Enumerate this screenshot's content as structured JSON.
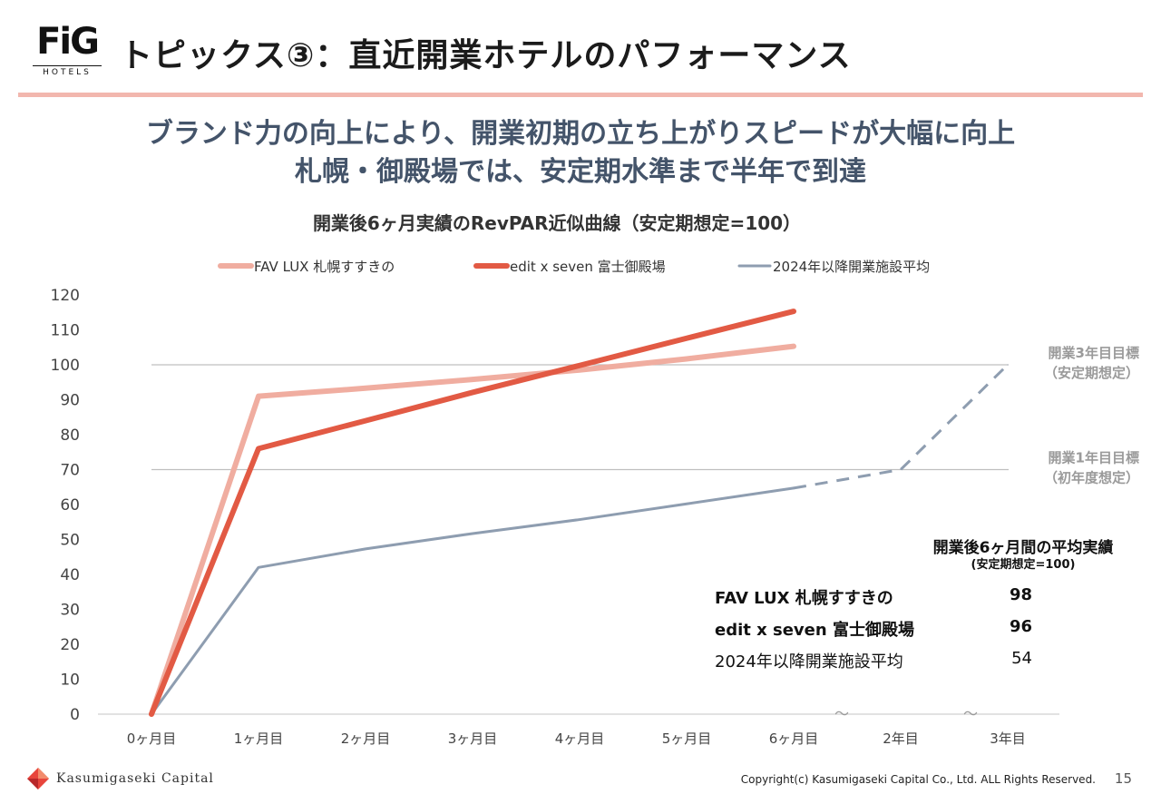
{
  "brand": {
    "mark": "FiG",
    "sub": "HOTELS"
  },
  "title": "トピックス③：直近開業ホテルのパフォーマンス",
  "headline": {
    "line1": "ブランド力の向上により、開業初期の立ち上がりスピードが大幅に向上",
    "line2": "札幌・御殿場では、安定期水準まで半年で到達"
  },
  "chart_data": {
    "type": "line",
    "title": "開業後6ヶ月実績のRevPAR近似曲線（安定期想定=100）",
    "categories": [
      "0ヶ月目",
      "1ヶ月目",
      "2ヶ月目",
      "3ヶ月目",
      "4ヶ月目",
      "5ヶ月目",
      "6ヶ月目",
      "2年目",
      "3年目"
    ],
    "ylim": [
      0,
      120
    ],
    "yticks": [
      0,
      10,
      20,
      30,
      40,
      50,
      60,
      70,
      80,
      90,
      100,
      110,
      120
    ],
    "series": [
      {
        "name": "FAV LUX 札幌すすきの",
        "color": "#f0ada0",
        "values": [
          0,
          91,
          93.3,
          95.8,
          98.5,
          101.7,
          105.3,
          null,
          null
        ]
      },
      {
        "name": "edit x seven 富士御殿場",
        "color": "#e25a44",
        "values": [
          0,
          76,
          84,
          92.1,
          99.8,
          107.6,
          115.3,
          null,
          null
        ]
      },
      {
        "name": "2024年以降開業施設平均",
        "color": "#8e9db0",
        "values": [
          0,
          42,
          47.3,
          51.7,
          55.7,
          60.2,
          64.7,
          70,
          100
        ],
        "dashed_from_index": 6
      }
    ],
    "reference_lines": [
      {
        "value": 100,
        "label_line1": "開業3年目目標",
        "label_line2": "（安定期想定）"
      },
      {
        "value": 70,
        "label_line1": "開業1年目目標",
        "label_line2": "（初年度想定）"
      }
    ],
    "break_marks": [
      "〜",
      "〜"
    ]
  },
  "summary": {
    "heading": "開業後6ヶ月間の平均実績",
    "subheading": "(安定期想定=100)",
    "rows": [
      {
        "name": "FAV LUX 札幌すすきの",
        "value": "98"
      },
      {
        "name": "edit x seven 富士御殿場",
        "value": "96"
      },
      {
        "name": "2024年以降開業施設平均",
        "value": "54"
      }
    ]
  },
  "footer": {
    "company": "Kasumigaseki Capital",
    "copyright": "Copyright(c) Kasumigaseki Capital Co., Ltd. ALL Rights Reserved.",
    "page": "15"
  }
}
